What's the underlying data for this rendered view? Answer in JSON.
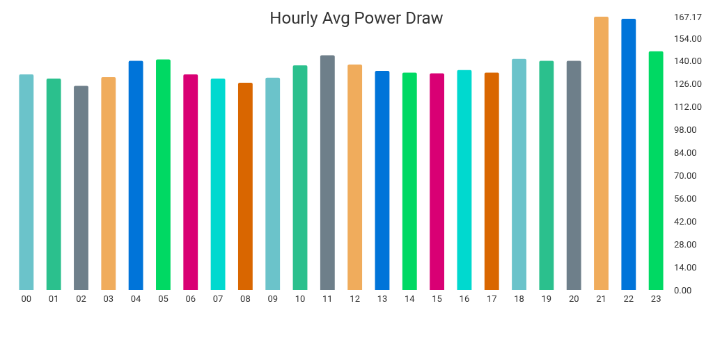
{
  "chart_data": {
    "type": "bar",
    "title": "Hourly Avg Power Draw",
    "categories": [
      "00",
      "01",
      "02",
      "03",
      "04",
      "05",
      "06",
      "07",
      "08",
      "09",
      "10",
      "11",
      "12",
      "13",
      "14",
      "15",
      "16",
      "17",
      "18",
      "19",
      "20",
      "21",
      "22",
      "23"
    ],
    "values": [
      131.9,
      129.3,
      124.8,
      130.2,
      140.2,
      141.0,
      131.9,
      129.3,
      126.8,
      129.8,
      137.4,
      143.6,
      137.9,
      134.0,
      132.9,
      132.5,
      134.5,
      132.9,
      141.3,
      140.2,
      140.2,
      167.17,
      165.9,
      146.0
    ],
    "colors": [
      "#6bc3ca",
      "#2bc08d",
      "#6e7f8a",
      "#f0ac5c",
      "#0074d9",
      "#00d963",
      "#d90074",
      "#00d9cf",
      "#d96600",
      "#6bc3ca",
      "#2bc08d",
      "#6e7f8a",
      "#f0ac5c",
      "#0074d9",
      "#00d963",
      "#d90074",
      "#00d9cf",
      "#d96600",
      "#6bc3ca",
      "#2bc08d",
      "#6e7f8a",
      "#f0ac5c",
      "#0074d9",
      "#00d963"
    ],
    "ylim": [
      0,
      167.17
    ],
    "yticks": [
      {
        "value": 0,
        "label": "0.00"
      },
      {
        "value": 14,
        "label": "14.00"
      },
      {
        "value": 28,
        "label": "28.00"
      },
      {
        "value": 42,
        "label": "42.00"
      },
      {
        "value": 56,
        "label": "56.00"
      },
      {
        "value": 70,
        "label": "70.00"
      },
      {
        "value": 84,
        "label": "84.00"
      },
      {
        "value": 98,
        "label": "98.00"
      },
      {
        "value": 112,
        "label": "112.00"
      },
      {
        "value": 126,
        "label": "126.00"
      },
      {
        "value": 140,
        "label": "140.00"
      },
      {
        "value": 154,
        "label": "154.00"
      },
      {
        "value": 167.17,
        "label": "167.17"
      }
    ],
    "grid": false
  }
}
